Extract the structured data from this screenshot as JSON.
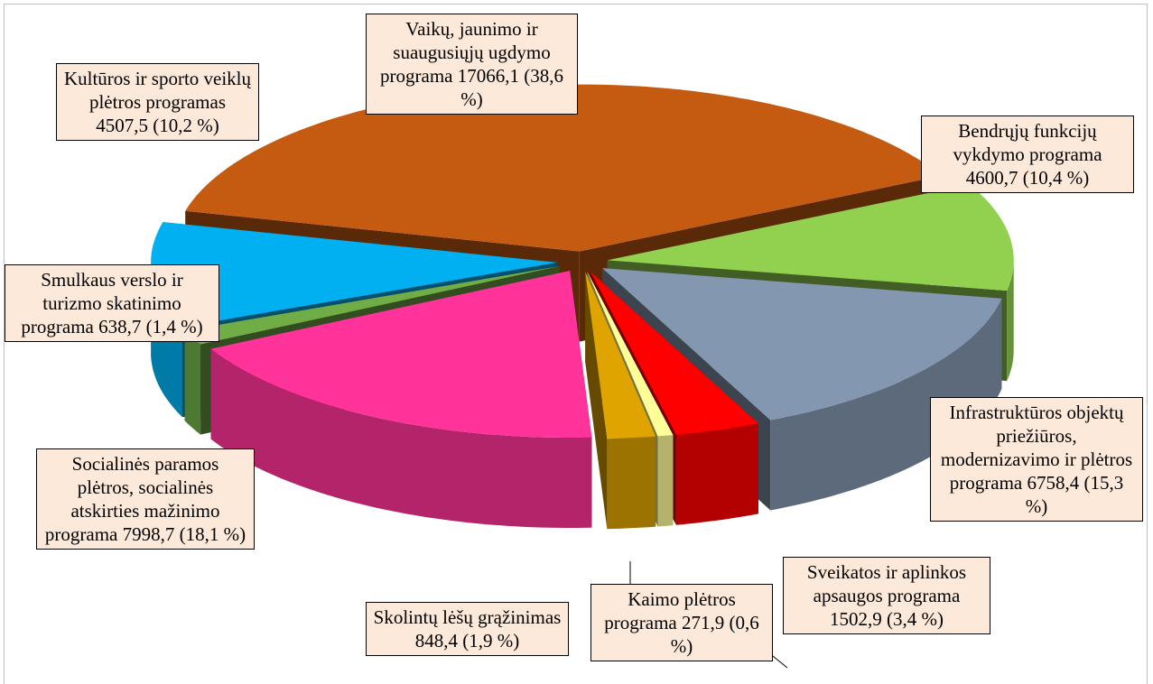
{
  "chart_data": {
    "type": "pie3d",
    "categories": [
      "Vaikų, jaunimo ir suaugusiųjų ugdymo programa",
      "Bendrųjų funkcijų vykdymo programa",
      "Infrastruktūros objektų priežiūros, modernizavimo ir plėtros programa",
      "Sveikatos ir aplinkos apsaugos programa",
      "Kaimo plėtros programa",
      "Skolintų lėšų grąžinimas",
      "Socialinės paramos plėtros, socialinės atskirties mažinimo programa",
      "Smulkaus verslo ir turizmo skatinimo programa",
      "Kultūros ir sporto veiklų plėtros programas"
    ],
    "values": [
      17066.1,
      4600.7,
      6758.4,
      1502.9,
      271.9,
      848.4,
      7998.7,
      638.7,
      4507.5
    ],
    "value_labels": [
      "17066,1",
      "4600,7",
      "6758,4",
      "1502,9",
      "271,9",
      "848,4",
      "7998,7",
      "638,7",
      "4507,5"
    ],
    "percent_labels": [
      "(38,6 %)",
      "(10,4 %)",
      "(15,3 %)",
      "(3,4 %)",
      "(0,6 %)",
      "(1,9 %)",
      "(18,1 %)",
      "(1,4 %)",
      "(10,2 %)"
    ],
    "colors": [
      "#c55a11",
      "#92d050",
      "#8497b0",
      "#ff0000",
      "#ffff99",
      "#e0a400",
      "#ff3399",
      "#70ad47",
      "#00b0f0"
    ]
  }
}
